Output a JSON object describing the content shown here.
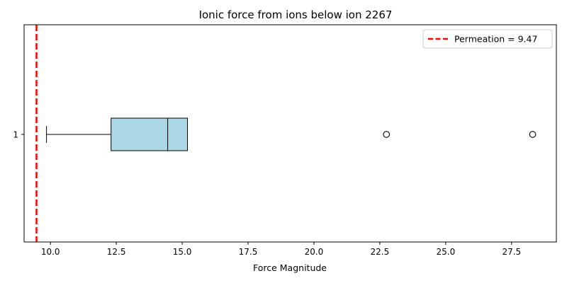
{
  "chart_data": {
    "type": "boxplot",
    "orientation": "horizontal",
    "title": "Ionic force from ions below ion 2267",
    "xlabel": "Force Magnitude",
    "ylabel": "",
    "xlim": [
      9.0,
      29.2
    ],
    "x_ticks": [
      10.0,
      12.5,
      15.0,
      17.5,
      20.0,
      22.5,
      25.0,
      27.5
    ],
    "x_tick_labels": [
      "10.0",
      "12.5",
      "15.0",
      "17.5",
      "20.0",
      "22.5",
      "25.0",
      "27.5"
    ],
    "y_tick_labels": [
      "1"
    ],
    "grid": false,
    "boxes": [
      {
        "label": "1",
        "whisker_low": 9.85,
        "q1": 12.3,
        "median": 14.45,
        "q3": 15.2,
        "whisker_high": 15.2,
        "outliers": [
          22.75,
          28.3
        ],
        "fill_color": "#add8e6"
      }
    ],
    "reference_line": {
      "x": 9.47,
      "label": "Permeation = 9.47",
      "color": "#ff0000",
      "style": "dashed"
    },
    "legend": {
      "placement": "top-right",
      "entries": [
        "Permeation = 9.47"
      ]
    }
  }
}
